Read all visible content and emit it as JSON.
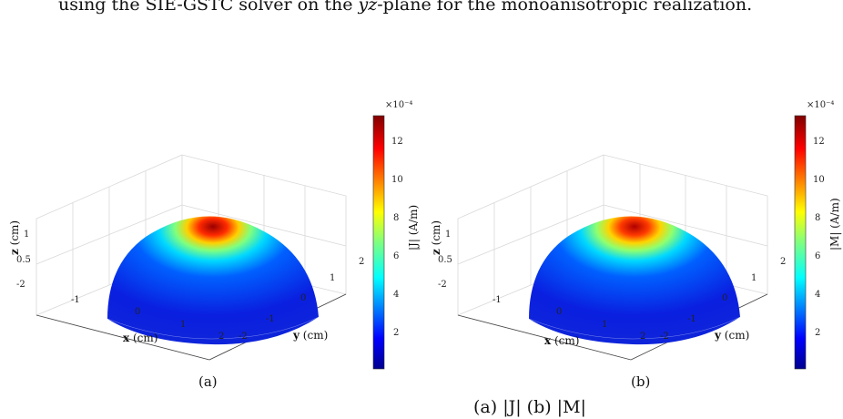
{
  "caption_top": {
    "prefix": "using the SIE-GSTC solver on the ",
    "plane": "yz",
    "suffix": "-plane for the monoanisotropic realization."
  },
  "caption_bottom_fragment": "(a) |J|  (b) |M|",
  "panels": [
    {
      "id": "a",
      "sublabel": "(a)",
      "colorbar_label": "|J| (A/m)",
      "colorbar_exponent": "×10⁻⁴",
      "colorbar_ticks": [
        "12",
        "10",
        "8",
        "6",
        "4",
        "2"
      ]
    },
    {
      "id": "b",
      "sublabel": "(b)",
      "colorbar_label": "|M| (A/m)",
      "colorbar_exponent": "×10⁻⁴",
      "colorbar_ticks": [
        "12",
        "10",
        "8",
        "6",
        "4",
        "2"
      ]
    }
  ],
  "axes": {
    "x_label": "x (cm)",
    "y_label": "y (cm)",
    "z_label": "z (cm)",
    "x_ticks": [
      "-2",
      "-1",
      "0",
      "1",
      "2"
    ],
    "y_ticks": [
      "-2",
      "-1",
      "0",
      "1",
      "2"
    ],
    "z_ticks": [
      "0.5",
      "1"
    ]
  },
  "colors": {
    "jet_low": "#00008f",
    "jet_high": "#800000"
  }
}
